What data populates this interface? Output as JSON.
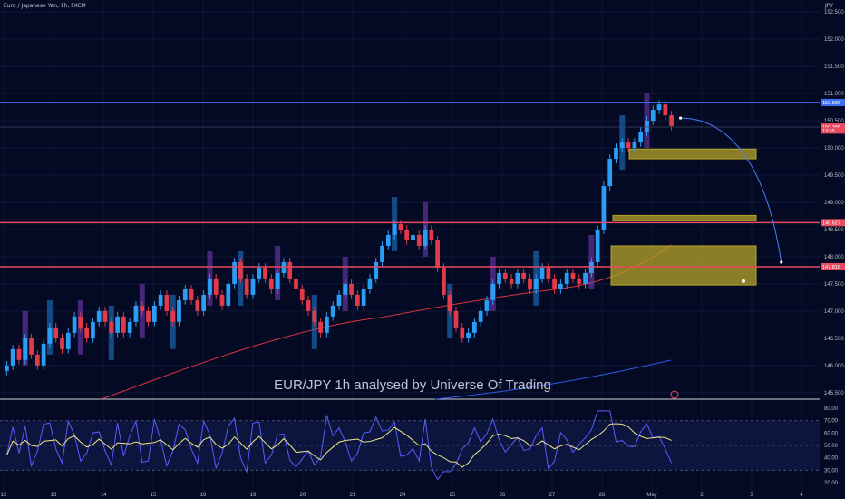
{
  "header": {
    "symbol": "Euro / Japanese Yen, 1h, FXCM",
    "currency": "JPY"
  },
  "watermark": "EUR/JPY 1h  analysed by Universe Of Trading",
  "colors": {
    "background": "#050a24",
    "up_candle": "#2a9df4",
    "down_candle": "#e23a4a",
    "resistance_blue": "#3f6ff5",
    "support_red": "#e84a5f",
    "zone": "#b5a528",
    "ema_red": "#d9343d",
    "ema_blue": "#2d5ae6",
    "rsi_line": "#5b5bff",
    "rsi_ma": "#f0e68c",
    "volume_purple": "#7a3fbf",
    "volume_blue": "#1f7fd4"
  },
  "chart_data": {
    "type": "candlestick",
    "symbol": "EUR/JPY",
    "timeframe": "1h",
    "y_axis_ticks": [
      "152.500",
      "152.000",
      "151.500",
      "151.000",
      "150.500",
      "150.000",
      "149.500",
      "149.000",
      "148.500",
      "148.000",
      "147.500",
      "147.000",
      "146.500",
      "146.000",
      "145.500"
    ],
    "ylim": [
      145.38,
      152.72
    ],
    "x_axis_ticks": [
      "12",
      "13",
      "14",
      "15",
      "18",
      "19",
      "20",
      "21",
      "24",
      "25",
      "26",
      "27",
      "28",
      "May",
      "2",
      "3",
      "4"
    ],
    "price_labels": [
      {
        "value": 150.836,
        "text": "150.836",
        "style": "blue"
      },
      {
        "value": 150.385,
        "text": "150.385",
        "style": "red"
      },
      {
        "value": 150.32,
        "text": "13:55",
        "style": "red-small"
      },
      {
        "value": 148.627,
        "text": "148.627",
        "style": "red"
      },
      {
        "value": 147.816,
        "text": "147.816",
        "style": "red"
      }
    ],
    "horizontal_lines": [
      {
        "name": "resistance",
        "value": 150.836,
        "color": "#3f6ff5"
      },
      {
        "name": "support-1",
        "value": 148.627,
        "color": "#e84a5f"
      },
      {
        "name": "support-2",
        "value": 147.816,
        "color": "#e84a5f"
      },
      {
        "name": "last-price",
        "value": 150.385,
        "color": "#3a4466"
      }
    ],
    "zones": [
      {
        "from": 149.8,
        "to": 149.98
      },
      {
        "from": 148.66,
        "to": 148.76
      },
      {
        "from": 147.48,
        "to": 148.2
      }
    ],
    "closes": [
      146.0,
      146.3,
      146.1,
      146.5,
      146.2,
      146.0,
      146.4,
      146.7,
      146.5,
      146.3,
      146.6,
      146.9,
      146.7,
      146.5,
      146.8,
      147.0,
      146.8,
      146.6,
      146.9,
      146.6,
      146.8,
      147.1,
      147.0,
      146.8,
      147.1,
      147.3,
      147.0,
      146.8,
      147.2,
      147.4,
      147.2,
      147.0,
      147.3,
      147.6,
      147.3,
      147.1,
      147.5,
      147.9,
      147.6,
      147.3,
      147.6,
      147.8,
      147.6,
      147.4,
      147.7,
      147.9,
      147.6,
      147.4,
      147.2,
      147.0,
      146.8,
      146.6,
      146.9,
      147.1,
      147.3,
      147.5,
      147.3,
      147.1,
      147.4,
      147.6,
      147.9,
      148.2,
      148.4,
      148.6,
      148.5,
      148.3,
      148.4,
      148.2,
      148.5,
      148.3,
      147.8,
      147.3,
      147.0,
      146.7,
      146.5,
      146.6,
      146.8,
      147.0,
      147.2,
      147.5,
      147.7,
      147.6,
      147.5,
      147.7,
      147.6,
      147.4,
      147.6,
      147.8,
      147.6,
      147.4,
      147.5,
      147.7,
      147.6,
      147.5,
      147.7,
      147.9,
      148.5,
      149.3,
      149.8,
      150.0,
      150.1,
      150.0,
      150.1,
      150.3,
      150.5,
      150.7,
      150.8,
      150.6,
      150.4
    ],
    "projection": {
      "from": {
        "index": 108,
        "value": 150.55
      },
      "to": {
        "index": 117,
        "value": 147.9
      }
    },
    "rsi": {
      "axis_ticks": [
        "80.00",
        "70.00",
        "60.00",
        "50.00",
        "40.00",
        "30.00",
        "20.00"
      ],
      "bands": [
        70,
        50,
        30
      ],
      "ylim": [
        17,
        83
      ]
    }
  }
}
